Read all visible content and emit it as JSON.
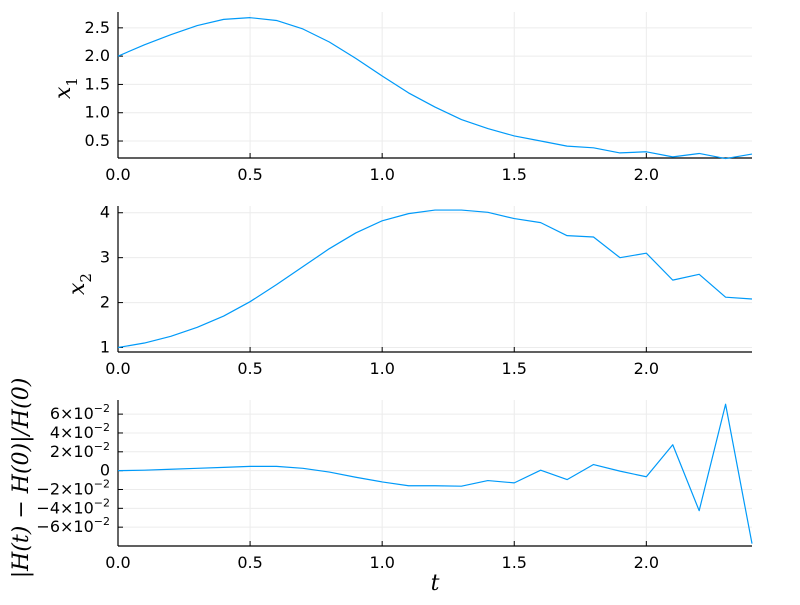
{
  "colors": {
    "series": "#009af9"
  },
  "chart_data": [
    {
      "type": "line",
      "xlabel": "",
      "ylabel": "x",
      "ylabel_sub": "1",
      "xlim": [
        0,
        2.4
      ],
      "ylim": [
        0.2,
        2.78
      ],
      "grid": true,
      "xticks": [
        0.0,
        0.5,
        1.0,
        1.5,
        2.0
      ],
      "xtick_labels": [
        "0.0",
        "0.5",
        "1.0",
        "1.5",
        "2.0"
      ],
      "yticks": [
        0.5,
        1.0,
        1.5,
        2.0,
        2.5
      ],
      "ytick_labels": [
        "0.5",
        "1.0",
        "1.5",
        "2.0",
        "2.5"
      ],
      "x": [
        0,
        0.1,
        0.2,
        0.3,
        0.4,
        0.5,
        0.6,
        0.7,
        0.8,
        0.9,
        1.0,
        1.1,
        1.2,
        1.3,
        1.4,
        1.5,
        1.6,
        1.7,
        1.8,
        1.9,
        2.0,
        2.1,
        2.2,
        2.3,
        2.4
      ],
      "y": [
        2.0,
        2.2,
        2.38,
        2.54,
        2.65,
        2.68,
        2.63,
        2.48,
        2.25,
        1.96,
        1.65,
        1.35,
        1.1,
        0.88,
        0.72,
        0.59,
        0.5,
        0.41,
        0.38,
        0.29,
        0.31,
        0.22,
        0.28,
        0.19,
        0.27
      ]
    },
    {
      "type": "line",
      "xlabel": "",
      "ylabel": "x",
      "ylabel_sub": "2",
      "xlim": [
        0,
        2.4
      ],
      "ylim": [
        0.9,
        4.15
      ],
      "grid": true,
      "xticks": [
        0.0,
        0.5,
        1.0,
        1.5,
        2.0
      ],
      "xtick_labels": [
        "0.0",
        "0.5",
        "1.0",
        "1.5",
        "2.0"
      ],
      "yticks": [
        1,
        2,
        3,
        4
      ],
      "ytick_labels": [
        "1",
        "2",
        "3",
        "4"
      ],
      "x": [
        0,
        0.1,
        0.2,
        0.3,
        0.4,
        0.5,
        0.6,
        0.7,
        0.8,
        0.9,
        1.0,
        1.1,
        1.2,
        1.3,
        1.4,
        1.5,
        1.6,
        1.7,
        1.8,
        1.9,
        2.0,
        2.1,
        2.2,
        2.3,
        2.4
      ],
      "y": [
        1.0,
        1.1,
        1.25,
        1.45,
        1.7,
        2.02,
        2.4,
        2.8,
        3.2,
        3.55,
        3.82,
        3.98,
        4.06,
        4.06,
        4.01,
        3.87,
        3.78,
        3.49,
        3.46,
        3.0,
        3.1,
        2.5,
        2.63,
        2.12,
        2.08
      ]
    },
    {
      "type": "line",
      "xlabel": "t",
      "ylabel": "|H(t) − H(0)|/H(0)",
      "xlim": [
        0,
        2.4
      ],
      "ylim": [
        -0.08,
        0.075
      ],
      "grid": true,
      "xticks": [
        0.0,
        0.5,
        1.0,
        1.5,
        2.0
      ],
      "xtick_labels": [
        "0.0",
        "0.5",
        "1.0",
        "1.5",
        "2.0"
      ],
      "yticks": [
        -0.06,
        -0.04,
        -0.02,
        0,
        0.02,
        0.04,
        0.06
      ],
      "ytick_labels": [
        {
          "m": "−6×10",
          "e": "−2"
        },
        {
          "m": "−4×10",
          "e": "−2"
        },
        {
          "m": "−2×10",
          "e": "−2"
        },
        {
          "m": "0",
          "e": ""
        },
        {
          "m": "2×10",
          "e": "−2"
        },
        {
          "m": "4×10",
          "e": "−2"
        },
        {
          "m": "6×10",
          "e": "−2"
        }
      ],
      "x": [
        0,
        0.1,
        0.2,
        0.3,
        0.4,
        0.5,
        0.6,
        0.7,
        0.8,
        0.9,
        1.0,
        1.1,
        1.2,
        1.3,
        1.4,
        1.5,
        1.6,
        1.7,
        1.8,
        1.9,
        2.0,
        2.1,
        2.2,
        2.3,
        2.4
      ],
      "y": [
        0,
        0.0005,
        0.0015,
        0.0025,
        0.0035,
        0.0045,
        0.0045,
        0.0025,
        -0.0015,
        -0.007,
        -0.012,
        -0.016,
        -0.016,
        -0.0165,
        -0.0105,
        -0.013,
        0.0005,
        -0.0095,
        0.0065,
        -0.0005,
        -0.0065,
        0.0275,
        -0.0425,
        0.0705,
        -0.0775
      ]
    }
  ]
}
